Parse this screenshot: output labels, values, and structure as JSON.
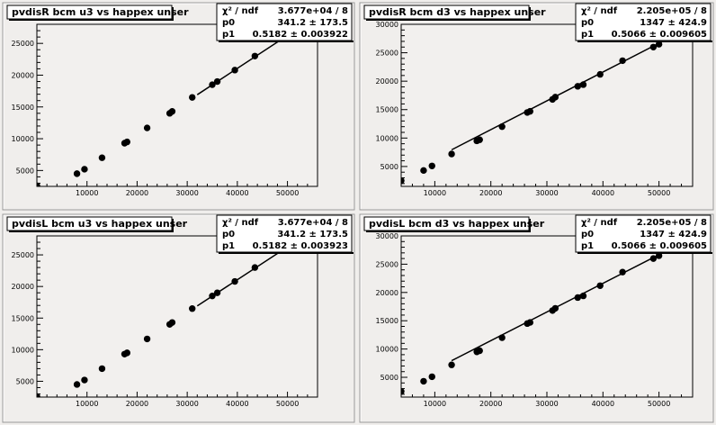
{
  "chart_data": [
    {
      "type": "scatter",
      "title": "pvdisR bcm u3 vs happex unser",
      "xlim": [
        0,
        56000
      ],
      "ylim": [
        2500,
        28000
      ],
      "xticks": [
        "10000",
        "20000",
        "30000",
        "40000",
        "50000"
      ],
      "yticks": [
        "5000",
        "10000",
        "15000",
        "20000",
        "25000"
      ],
      "stats": [
        {
          "label": "χ² / ndf",
          "value": "3.677e+04 / 8"
        },
        {
          "label": "p0",
          "value": "341.2 ± 173.5"
        },
        {
          "label": "p1",
          "value": "0.5182 ± 0.003922"
        }
      ],
      "fit": {
        "intercept": 341.2,
        "slope": 0.5182,
        "x_range": [
          32000,
          52500
        ]
      },
      "x": [
        0,
        8000,
        9500,
        13000,
        17500,
        18000,
        22000,
        26500,
        27000,
        31000,
        35000,
        36000,
        39500,
        43500,
        49000,
        50000,
        51000,
        52000
      ],
      "y": [
        2600,
        4500,
        5200,
        7000,
        9300,
        9500,
        11700,
        14000,
        14300,
        16500,
        18500,
        19000,
        20800,
        23000,
        25800,
        26300,
        26800,
        27200
      ]
    },
    {
      "type": "scatter",
      "title": "pvdisR bcm d3 vs happex unser",
      "xlim": [
        4000,
        56000
      ],
      "ylim": [
        1500,
        30000
      ],
      "xticks": [
        "10000",
        "20000",
        "30000",
        "40000",
        "50000"
      ],
      "yticks": [
        "5000",
        "10000",
        "15000",
        "20000",
        "25000",
        "30000"
      ],
      "stats": [
        {
          "label": "χ² / ndf",
          "value": "2.205e+05 / 8"
        },
        {
          "label": "p0",
          "value": "1347 ± 424.9"
        },
        {
          "label": "p1",
          "value": "0.5066 ± 0.009605"
        }
      ],
      "fit": {
        "intercept": 1347,
        "slope": 0.5066,
        "x_range": [
          13000,
          53000
        ]
      },
      "x": [
        4000,
        8000,
        9500,
        13000,
        17500,
        18000,
        22000,
        26500,
        27000,
        31000,
        31500,
        35500,
        36500,
        39500,
        43500,
        49000,
        50000,
        52000
      ],
      "y": [
        2500,
        4300,
        5100,
        7200,
        9500,
        9700,
        12000,
        14500,
        14700,
        16800,
        17200,
        19100,
        19400,
        21200,
        23600,
        26000,
        26500,
        27500
      ]
    },
    {
      "type": "scatter",
      "title": "pvdisL bcm u3 vs happex unser",
      "xlim": [
        0,
        56000
      ],
      "ylim": [
        2500,
        28000
      ],
      "xticks": [
        "10000",
        "20000",
        "30000",
        "40000",
        "50000"
      ],
      "yticks": [
        "5000",
        "10000",
        "15000",
        "20000",
        "25000"
      ],
      "stats": [
        {
          "label": "χ² / ndf",
          "value": "3.677e+04 / 8"
        },
        {
          "label": "p0",
          "value": "341.2 ± 173.5"
        },
        {
          "label": "p1",
          "value": "0.5182 ± 0.003923"
        }
      ],
      "fit": {
        "intercept": 341.2,
        "slope": 0.5182,
        "x_range": [
          32000,
          52500
        ]
      },
      "x": [
        0,
        8000,
        9500,
        13000,
        17500,
        18000,
        22000,
        26500,
        27000,
        31000,
        35000,
        36000,
        39500,
        43500,
        49000,
        50000,
        51000,
        52000
      ],
      "y": [
        2600,
        4500,
        5200,
        7000,
        9300,
        9500,
        11700,
        14000,
        14300,
        16500,
        18500,
        19000,
        20800,
        23000,
        25800,
        26300,
        26800,
        27200
      ]
    },
    {
      "type": "scatter",
      "title": "pvdisL bcm d3 vs happex unser",
      "xlim": [
        4000,
        56000
      ],
      "ylim": [
        1500,
        30000
      ],
      "xticks": [
        "10000",
        "20000",
        "30000",
        "40000",
        "50000"
      ],
      "yticks": [
        "5000",
        "10000",
        "15000",
        "20000",
        "25000",
        "30000"
      ],
      "stats": [
        {
          "label": "χ² / ndf",
          "value": "2.205e+05 / 8"
        },
        {
          "label": "p0",
          "value": "1347 ± 424.9"
        },
        {
          "label": "p1",
          "value": "0.5066 ± 0.009605"
        }
      ],
      "fit": {
        "intercept": 1347,
        "slope": 0.5066,
        "x_range": [
          13000,
          53000
        ]
      },
      "x": [
        4000,
        8000,
        9500,
        13000,
        17500,
        18000,
        22000,
        26500,
        27000,
        31000,
        31500,
        35500,
        36500,
        39500,
        43500,
        49000,
        50000,
        52000
      ],
      "y": [
        2500,
        4300,
        5100,
        7200,
        9500,
        9700,
        12000,
        14500,
        14700,
        16800,
        17200,
        19100,
        19400,
        21200,
        23600,
        26000,
        26500,
        27500
      ]
    }
  ]
}
